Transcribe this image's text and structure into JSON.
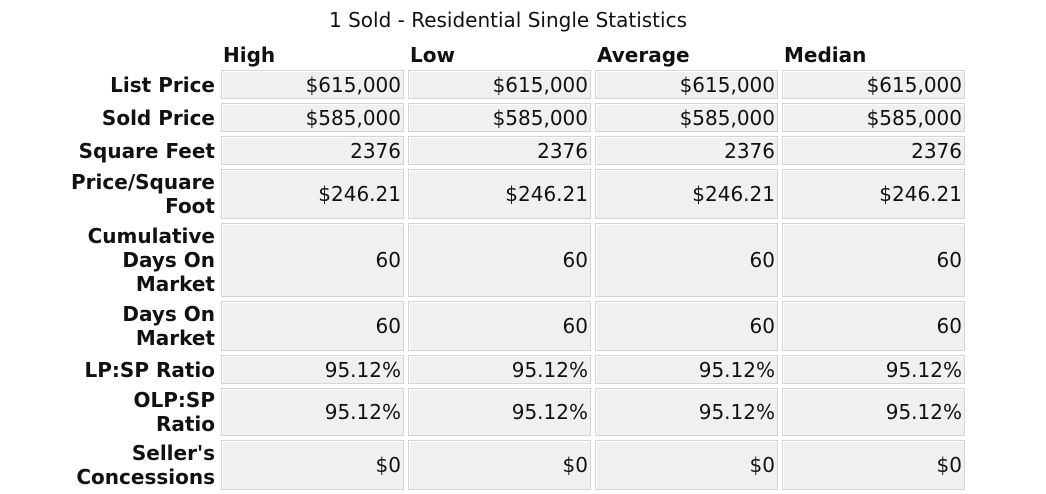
{
  "title": "1 Sold - Residential Single Statistics",
  "columns": [
    "High",
    "Low",
    "Average",
    "Median"
  ],
  "rows": [
    {
      "label": "List Price",
      "values": [
        "$615,000",
        "$615,000",
        "$615,000",
        "$615,000"
      ]
    },
    {
      "label": "Sold Price",
      "values": [
        "$585,000",
        "$585,000",
        "$585,000",
        "$585,000"
      ]
    },
    {
      "label": "Square Feet",
      "values": [
        "2376",
        "2376",
        "2376",
        "2376"
      ]
    },
    {
      "label": "Price/Square Foot",
      "values": [
        "$246.21",
        "$246.21",
        "$246.21",
        "$246.21"
      ]
    },
    {
      "label": "Cumulative Days On Market",
      "values": [
        "60",
        "60",
        "60",
        "60"
      ]
    },
    {
      "label": "Days On Market",
      "values": [
        "60",
        "60",
        "60",
        "60"
      ]
    },
    {
      "label": "LP:SP Ratio",
      "values": [
        "95.12%",
        "95.12%",
        "95.12%",
        "95.12%"
      ]
    },
    {
      "label": "OLP:SP Ratio",
      "values": [
        "95.12%",
        "95.12%",
        "95.12%",
        "95.12%"
      ]
    },
    {
      "label": "Seller's Concessions",
      "values": [
        "$0",
        "$0",
        "$0",
        "$0"
      ]
    }
  ]
}
